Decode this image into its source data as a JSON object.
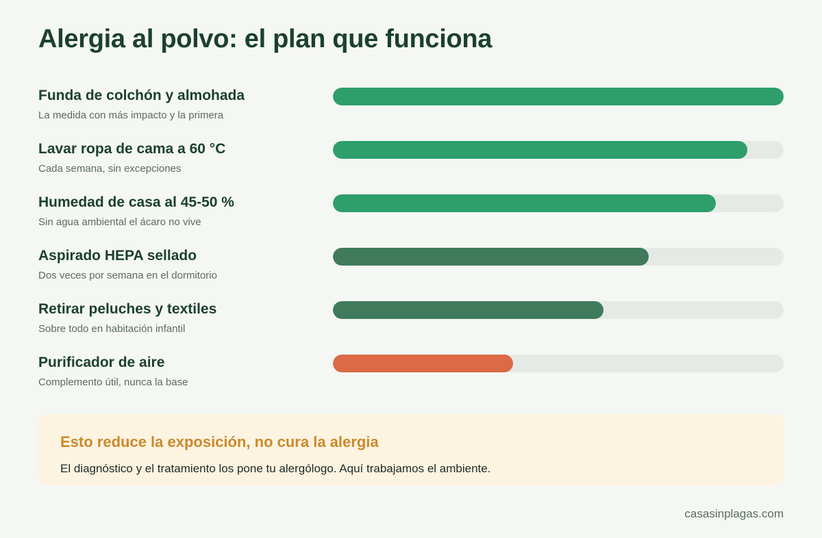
{
  "title": "Alergia al polvo: el plan que funciona",
  "chart_data": {
    "type": "bar",
    "orientation": "horizontal",
    "xlim": [
      0,
      100
    ],
    "categories": [
      "Funda de colchón y almohada",
      "Lavar ropa de cama a 60 °C",
      "Humedad de casa al 45-50 %",
      "Aspirado HEPA sellado",
      "Retirar peluches y textiles",
      "Purificador de aire"
    ],
    "subtitles": [
      "La medida con más impacto y la primera",
      "Cada semana, sin excepciones",
      "Sin agua ambiental el ácaro no vive",
      "Dos veces por semana en el dormitorio",
      "Sobre todo en habitación infantil",
      "Complemento útil, nunca la base"
    ],
    "values": [
      100,
      92,
      85,
      70,
      60,
      40
    ],
    "colors": [
      "#2e9e6b",
      "#2e9e6b",
      "#2e9e6b",
      "#3f7a5c",
      "#3f7a5c",
      "#db6a45"
    ]
  },
  "note": {
    "title": "Esto reduce la exposición, no cura la alergia",
    "text": "El diagnóstico y el tratamiento los pone tu alergólogo. Aquí trabajamos el ambiente."
  },
  "footer": "casasinplagas.com",
  "colors": {
    "background": "#f5f7f4",
    "track": "#e5eae6",
    "note_background": "#fdf3e1",
    "note_title": "#c98a2b"
  }
}
